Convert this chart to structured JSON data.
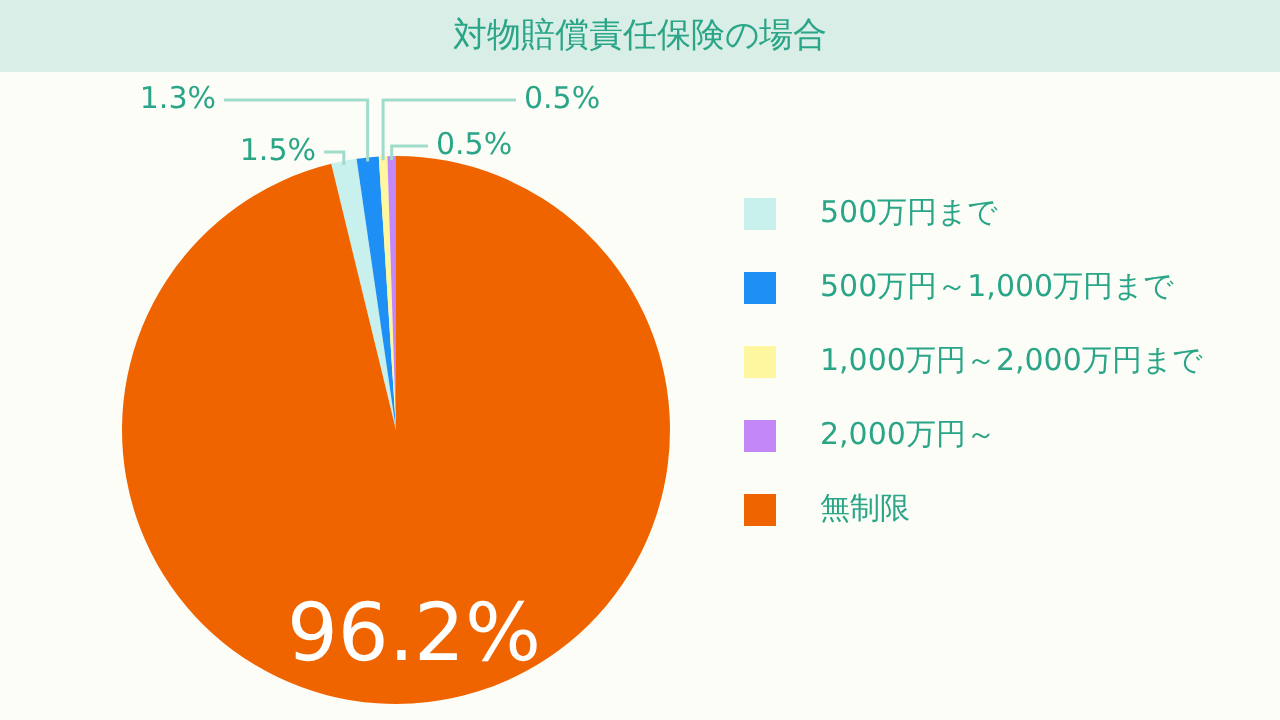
{
  "chart_data": {
    "type": "pie",
    "title": "対物賠償責任保険の場合",
    "categories": [
      "500万円まで",
      "500万円～1,000万円まで",
      "1,000万円～2,000万円まで",
      "2,000万円～",
      "無制限"
    ],
    "values": [
      1.5,
      1.3,
      0.5,
      0.5,
      96.2
    ],
    "colors": [
      "#c8f0ec",
      "#1e8ff5",
      "#fff6a0",
      "#c387f7",
      "#f06400"
    ],
    "value_labels": [
      "1.5%",
      "1.3%",
      "0.5%",
      "0.5%",
      "96.2%"
    ],
    "legend": "right"
  }
}
